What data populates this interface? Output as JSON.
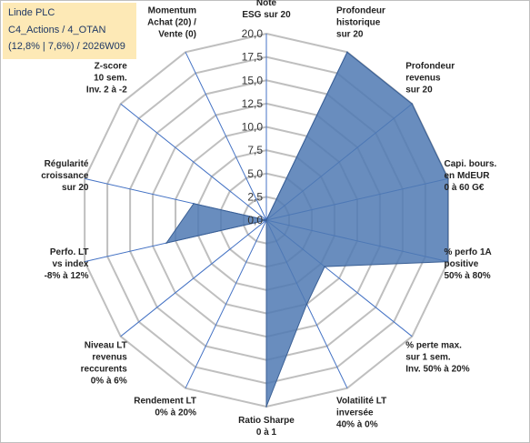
{
  "title": {
    "line1": "Linde PLC",
    "line2": "C4_Actions / 4_OTAN",
    "line3": "(12,8% | 7,6%) / 2026W09"
  },
  "chart_data": {
    "type": "radar",
    "rlim": [
      0,
      20
    ],
    "grid": true,
    "tick_labels": [
      "0,0",
      "2,5",
      "5,0",
      "7,5",
      "10,0",
      "12,5",
      "15,0",
      "17,5",
      "20,0"
    ],
    "axes": [
      {
        "label": [
          "Note",
          "ESG sur 20"
        ]
      },
      {
        "label": [
          "Profondeur",
          "historique",
          "sur 20"
        ]
      },
      {
        "label": [
          "Profondeur",
          "revenus",
          "sur 20"
        ]
      },
      {
        "label": [
          "Capi. bours.",
          "en MdEUR",
          "0 à 60 G€"
        ]
      },
      {
        "label": [
          "% perfo 1A",
          "positive",
          "50% à 80%"
        ]
      },
      {
        "label": [
          "% perte max.",
          "sur 1 sem.",
          "Inv. 50% à 20%"
        ]
      },
      {
        "label": [
          "Volatilité LT",
          "inversée",
          "40% à 0%"
        ]
      },
      {
        "label": [
          "Ratio Sharpe",
          "0 à 1"
        ]
      },
      {
        "label": [
          "Rendement LT",
          "0% à 20%"
        ]
      },
      {
        "label": [
          "Niveau LT",
          "revenus",
          "reccurents",
          "0% à 6%"
        ]
      },
      {
        "label": [
          "Perfo. LT",
          "vs index",
          "-8% à 12%"
        ]
      },
      {
        "label": [
          "Régularité",
          "croissance",
          "sur 20"
        ]
      },
      {
        "label": [
          "Z-score",
          "10 sem.",
          "Inv. 2 à -2"
        ]
      },
      {
        "label": [
          "Momentum",
          "Achat (20) /",
          "Vente (0)"
        ]
      }
    ],
    "series": [
      {
        "values": [
          0,
          20,
          20,
          20,
          20,
          8,
          10,
          20,
          0,
          0,
          11,
          8,
          0,
          0
        ],
        "color": "#4f79b3"
      }
    ],
    "colors": {
      "grid": "#bfbfbf",
      "spoke": "#4472c4",
      "fill": "#4f79b3",
      "title_bg": "#fde9b6"
    }
  }
}
